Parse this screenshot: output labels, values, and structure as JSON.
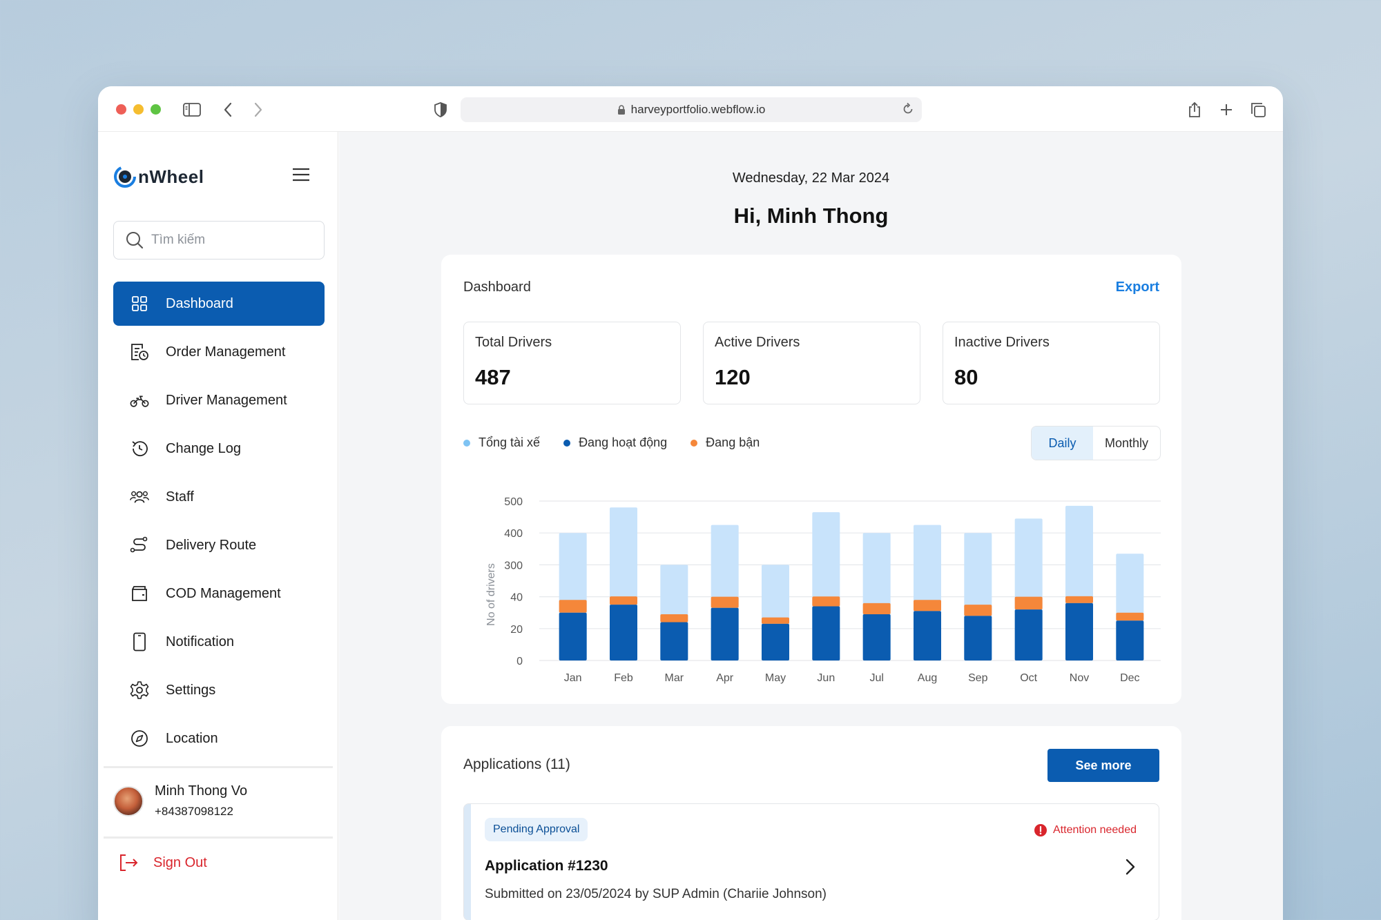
{
  "browser": {
    "url": "harveyportfolio.webflow.io"
  },
  "sidebar": {
    "logo_text": "nWheel",
    "search_placeholder": "Tìm kiếm",
    "items": [
      {
        "label": "Dashboard",
        "icon": "grid-icon",
        "active": true
      },
      {
        "label": "Order Management",
        "icon": "order-clock-icon"
      },
      {
        "label": "Driver Management",
        "icon": "motorbike-icon"
      },
      {
        "label": "Change Log",
        "icon": "history-icon"
      },
      {
        "label": "Staff",
        "icon": "users-icon"
      },
      {
        "label": "Delivery Route",
        "icon": "route-icon"
      },
      {
        "label": "COD Management",
        "icon": "wallet-icon"
      },
      {
        "label": "Notification",
        "icon": "phone-icon"
      },
      {
        "label": "Settings",
        "icon": "gear-icon"
      },
      {
        "label": "Location",
        "icon": "compass-icon"
      }
    ],
    "profile": {
      "name": "Minh Thong Vo",
      "phone": "+84387098122"
    },
    "sign_out": "Sign Out"
  },
  "header": {
    "date": "Wednesday, 22 Mar 2024",
    "greeting": "Hi, Minh Thong"
  },
  "dashboard": {
    "title": "Dashboard",
    "export_label": "Export",
    "stats": [
      {
        "label": "Total Drivers",
        "value": "487"
      },
      {
        "label": "Active Drivers",
        "value": "120"
      },
      {
        "label": "Inactive Drivers",
        "value": "80"
      }
    ],
    "legend": [
      {
        "label": "Tổng tài xế",
        "color": "#7ec3f3"
      },
      {
        "label": "Đang hoạt động",
        "color": "#0b5cb0"
      },
      {
        "label": "Đang bận",
        "color": "#f5873a"
      }
    ],
    "toggle": {
      "daily": "Daily",
      "monthly": "Monthly",
      "selected": "Daily"
    }
  },
  "chart_data": {
    "type": "bar",
    "stacked": true,
    "ylabel": "No of drivers",
    "y_ticks": [
      "0",
      "20",
      "40",
      "300",
      "400",
      "500"
    ],
    "categories": [
      "Jan",
      "Feb",
      "Mar",
      "Apr",
      "May",
      "Jun",
      "Jul",
      "Aug",
      "Sep",
      "Oct",
      "Nov",
      "Dec"
    ],
    "series": [
      {
        "name": "Đang hoạt động",
        "color": "#0b5cb0",
        "values": [
          30,
          35,
          24,
          33,
          23,
          34,
          29,
          31,
          28,
          32,
          36,
          25
        ]
      },
      {
        "name": "Đang bận",
        "color": "#f5873a",
        "values": [
          8,
          8,
          5,
          7,
          4,
          8,
          7,
          7,
          7,
          8,
          8,
          5
        ]
      },
      {
        "name": "Tổng tài xế",
        "color": "#c8e3fb",
        "values": [
          400,
          480,
          300,
          425,
          300,
          465,
          400,
          425,
          400,
          445,
          485,
          335
        ]
      }
    ],
    "grid": true
  },
  "applications": {
    "title": "Applications (11)",
    "see_more": "See more",
    "items": [
      {
        "status": "Pending Approval",
        "alert": "Attention needed",
        "name": "Application #1230",
        "submitted": "Submitted on 23/05/2024 by SUP Admin (Chariie Johnson)"
      }
    ]
  }
}
